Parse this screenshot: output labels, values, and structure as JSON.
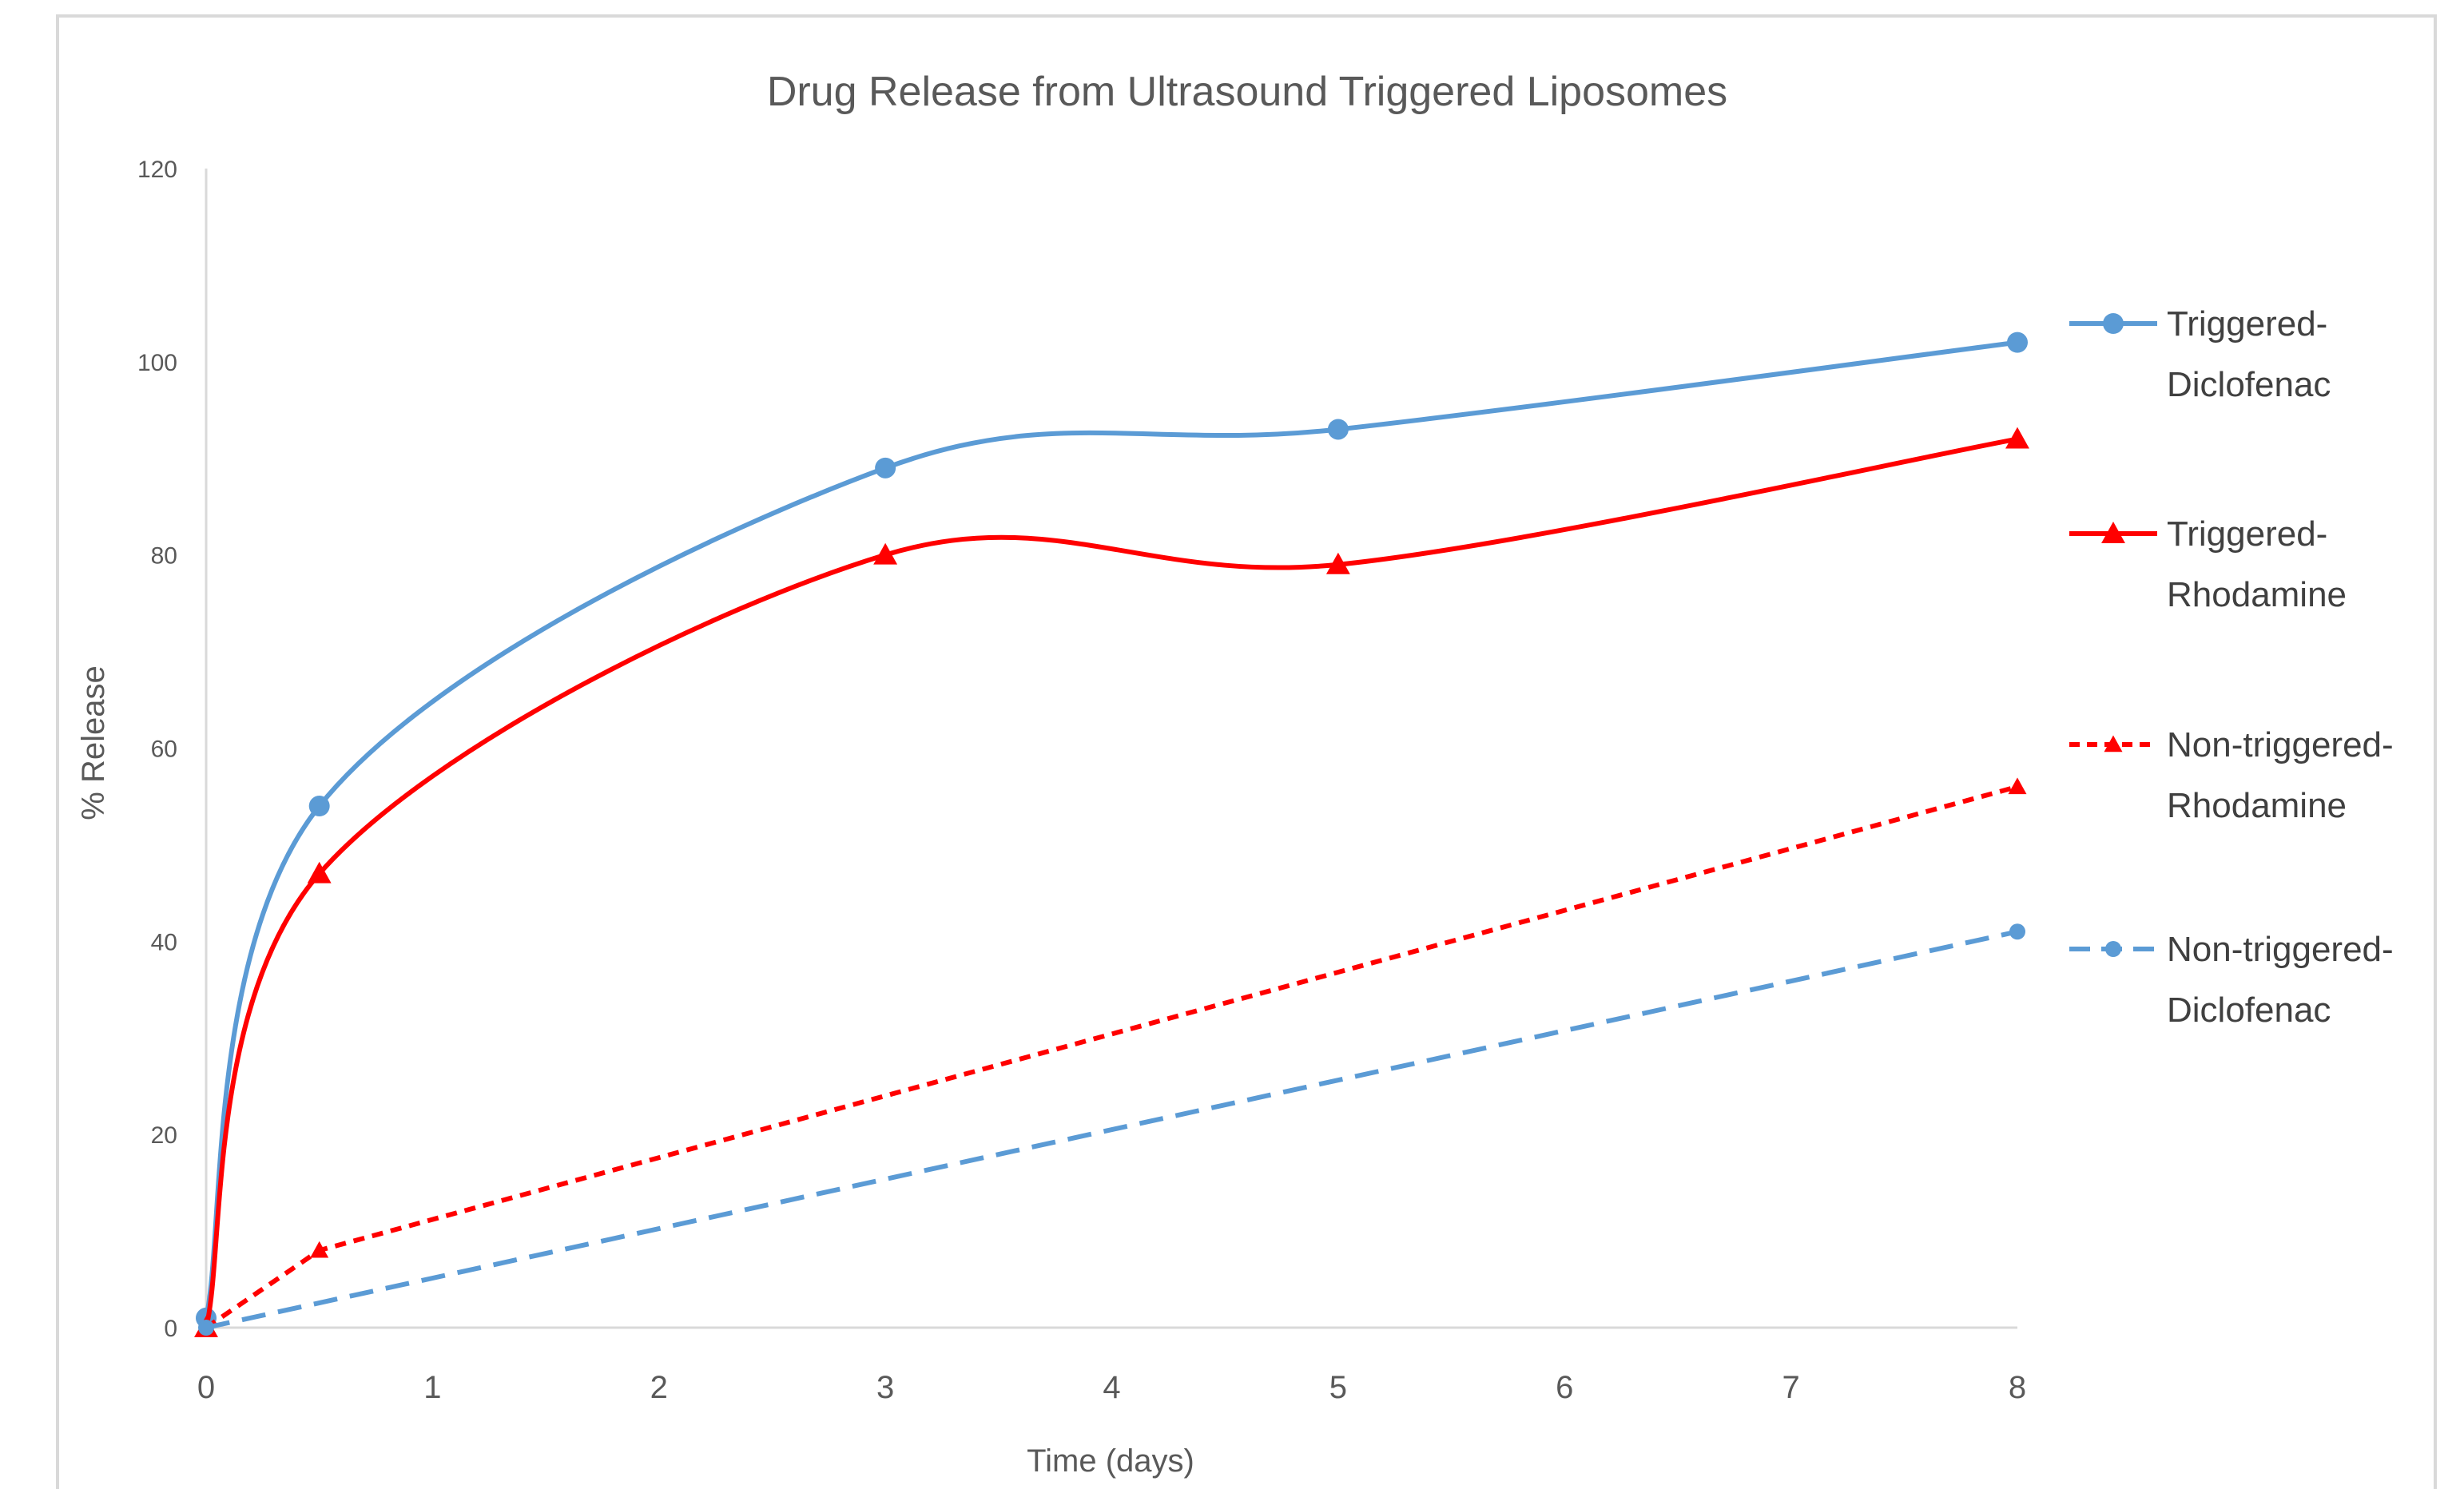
{
  "chart_data": {
    "type": "line",
    "title": "Drug Release from Ultrasound Triggered Liposomes",
    "xlabel": "Time (days)",
    "ylabel": "% Release",
    "xlim": [
      0,
      8
    ],
    "ylim": [
      0,
      120
    ],
    "x_ticks": [
      "0",
      "1",
      "2",
      "3",
      "4",
      "5",
      "6",
      "7",
      "8"
    ],
    "y_ticks": [
      "0",
      "20",
      "40",
      "60",
      "80",
      "100",
      "120"
    ],
    "grid": false,
    "legend_position": "right",
    "series": [
      {
        "name_lines": [
          "Triggered-",
          "Diclofenac"
        ],
        "color": "#5b9bd5",
        "line_style": "solid",
        "marker": "circle",
        "smooth": true,
        "points": [
          {
            "x": 0,
            "y": 1
          },
          {
            "x": 0.5,
            "y": 54
          },
          {
            "x": 3,
            "y": 89
          },
          {
            "x": 5,
            "y": 93
          },
          {
            "x": 8,
            "y": 102
          }
        ]
      },
      {
        "name_lines": [
          "Triggered-",
          "Rhodamine"
        ],
        "color": "#ff0000",
        "line_style": "solid",
        "marker": "triangle",
        "smooth": true,
        "points": [
          {
            "x": 0,
            "y": 0
          },
          {
            "x": 0.5,
            "y": 47
          },
          {
            "x": 3,
            "y": 80
          },
          {
            "x": 5,
            "y": 79
          },
          {
            "x": 8,
            "y": 92
          }
        ]
      },
      {
        "name_lines": [
          "Non-triggered-",
          "Rhodamine"
        ],
        "color": "#ff0000",
        "line_style": "dotted",
        "marker": "triangle",
        "smooth": false,
        "points": [
          {
            "x": 0,
            "y": 0
          },
          {
            "x": 0.5,
            "y": 8
          },
          {
            "x": 8,
            "y": 56
          }
        ]
      },
      {
        "name_lines": [
          "Non-triggered-",
          "Diclofenac"
        ],
        "color": "#5b9bd5",
        "line_style": "dashed",
        "marker": "circle",
        "smooth": false,
        "points": [
          {
            "x": 0,
            "y": 0
          },
          {
            "x": 8,
            "y": 41
          }
        ]
      }
    ]
  }
}
